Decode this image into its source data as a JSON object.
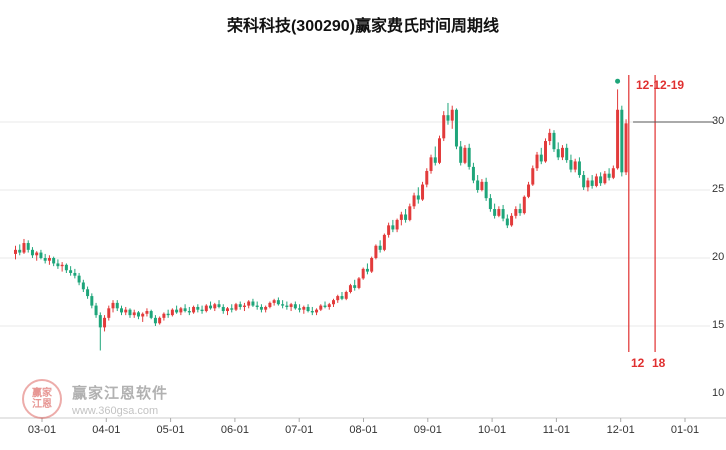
{
  "title": "荣科科技(300290)赢家费氏时间周期线",
  "watermark": {
    "logo_line1": "赢家",
    "logo_line2": "江恩",
    "name": "赢家江恩软件",
    "url": "www.360gsa.com"
  },
  "annotations": {
    "date_label": "12-12-19",
    "bottom_labels": [
      "12",
      "18"
    ]
  },
  "chart_data": {
    "type": "candlestick",
    "title": "荣科科技(300290)赢家费氏时间周期线",
    "x_tick_labels": [
      "03-01",
      "04-01",
      "05-01",
      "06-01",
      "07-01",
      "08-01",
      "09-01",
      "10-01",
      "11-01",
      "12-01",
      "01-01"
    ],
    "y_ticks": [
      {
        "value": 30,
        "label": "30",
        "grid": true
      },
      {
        "value": 25,
        "label": "25",
        "grid": true
      },
      {
        "value": 20,
        "label": "20",
        "grid": true
      },
      {
        "value": 15,
        "label": "15",
        "grid": true
      },
      {
        "value": 10,
        "label": "10",
        "grid": false
      }
    ],
    "ylim": [
      10,
      33.5
    ],
    "up_color": "#e23b3b",
    "down_color": "#1ea57a",
    "grid_color": "#eaeaea",
    "axis_color": "#cccccc",
    "cycle_color": "#e03030",
    "hline_value": 30,
    "marker": {
      "index": 142,
      "value": 33.0,
      "color": "#1ea57a"
    },
    "cycle_lines": [
      {
        "index": 145.0
      },
      {
        "index": 151.2
      }
    ],
    "candles_ohlc": [
      [
        20.3,
        20.9,
        19.9,
        20.6
      ],
      [
        20.6,
        21.0,
        20.2,
        20.4
      ],
      [
        20.4,
        21.4,
        20.3,
        21.1
      ],
      [
        21.1,
        21.3,
        20.4,
        20.6
      ],
      [
        20.6,
        20.8,
        20.0,
        20.2
      ],
      [
        20.2,
        20.5,
        19.8,
        20.4
      ],
      [
        20.4,
        20.6,
        19.9,
        20.0
      ],
      [
        20.0,
        20.3,
        19.6,
        19.8
      ],
      [
        19.8,
        20.2,
        19.5,
        20.0
      ],
      [
        20.0,
        20.1,
        19.4,
        19.6
      ],
      [
        19.6,
        19.9,
        19.2,
        19.4
      ],
      [
        19.4,
        19.7,
        19.0,
        19.5
      ],
      [
        19.5,
        19.6,
        18.9,
        19.1
      ],
      [
        19.1,
        19.4,
        18.7,
        18.9
      ],
      [
        18.9,
        19.2,
        18.5,
        18.7
      ],
      [
        18.7,
        18.9,
        18.0,
        18.2
      ],
      [
        18.2,
        18.4,
        17.5,
        17.7
      ],
      [
        17.7,
        17.9,
        17.0,
        17.2
      ],
      [
        17.2,
        17.4,
        16.3,
        16.5
      ],
      [
        16.5,
        16.7,
        15.6,
        15.8
      ],
      [
        15.8,
        16.0,
        13.2,
        14.9
      ],
      [
        14.9,
        15.8,
        14.6,
        15.6
      ],
      [
        15.6,
        16.5,
        15.4,
        16.3
      ],
      [
        16.3,
        16.9,
        16.0,
        16.7
      ],
      [
        16.7,
        16.9,
        16.1,
        16.3
      ],
      [
        16.3,
        16.5,
        15.8,
        16.0
      ],
      [
        16.0,
        16.4,
        15.8,
        16.2
      ],
      [
        16.2,
        16.3,
        15.6,
        15.8
      ],
      [
        15.8,
        16.2,
        15.6,
        16.0
      ],
      [
        16.0,
        16.1,
        15.5,
        15.7
      ],
      [
        15.7,
        16.0,
        15.3,
        15.9
      ],
      [
        15.9,
        16.3,
        15.7,
        16.1
      ],
      [
        16.1,
        16.2,
        15.5,
        15.6
      ],
      [
        15.6,
        15.8,
        15.0,
        15.2
      ],
      [
        15.2,
        15.7,
        15.1,
        15.6
      ],
      [
        15.6,
        16.0,
        15.4,
        15.9
      ],
      [
        15.9,
        16.2,
        15.6,
        15.8
      ],
      [
        15.8,
        16.3,
        15.7,
        16.2
      ],
      [
        16.2,
        16.5,
        15.9,
        16.0
      ],
      [
        16.0,
        16.4,
        15.8,
        16.3
      ],
      [
        16.3,
        16.6,
        16.0,
        16.1
      ],
      [
        16.1,
        16.4,
        15.8,
        16.0
      ],
      [
        16.0,
        16.5,
        15.9,
        16.4
      ],
      [
        16.4,
        16.6,
        16.0,
        16.2
      ],
      [
        16.2,
        16.5,
        15.9,
        16.1
      ],
      [
        16.1,
        16.6,
        16.0,
        16.5
      ],
      [
        16.5,
        16.8,
        16.2,
        16.3
      ],
      [
        16.3,
        16.7,
        16.1,
        16.6
      ],
      [
        16.6,
        16.9,
        16.3,
        16.4
      ],
      [
        16.4,
        16.6,
        15.9,
        16.1
      ],
      [
        16.1,
        16.4,
        15.8,
        16.3
      ],
      [
        16.3,
        16.6,
        16.0,
        16.2
      ],
      [
        16.2,
        16.7,
        16.1,
        16.6
      ],
      [
        16.6,
        16.8,
        16.2,
        16.4
      ],
      [
        16.4,
        16.7,
        16.1,
        16.5
      ],
      [
        16.5,
        16.9,
        16.3,
        16.8
      ],
      [
        16.8,
        17.0,
        16.4,
        16.5
      ],
      [
        16.5,
        16.8,
        16.2,
        16.4
      ],
      [
        16.4,
        16.6,
        16.0,
        16.2
      ],
      [
        16.2,
        16.5,
        16.0,
        16.4
      ],
      [
        16.4,
        16.8,
        16.3,
        16.7
      ],
      [
        16.7,
        17.0,
        16.5,
        16.9
      ],
      [
        16.9,
        17.1,
        16.5,
        16.6
      ],
      [
        16.6,
        16.9,
        16.3,
        16.5
      ],
      [
        16.5,
        16.8,
        16.2,
        16.4
      ],
      [
        16.4,
        16.7,
        16.1,
        16.6
      ],
      [
        16.6,
        16.8,
        16.2,
        16.3
      ],
      [
        16.3,
        16.6,
        16.0,
        16.2
      ],
      [
        16.2,
        16.5,
        15.9,
        16.4
      ],
      [
        16.4,
        16.6,
        16.0,
        16.1
      ],
      [
        16.1,
        16.4,
        15.8,
        16.0
      ],
      [
        16.0,
        16.3,
        15.8,
        16.2
      ],
      [
        16.2,
        16.6,
        16.1,
        16.5
      ],
      [
        16.5,
        16.8,
        16.3,
        16.4
      ],
      [
        16.4,
        16.7,
        16.2,
        16.6
      ],
      [
        16.6,
        17.0,
        16.4,
        16.9
      ],
      [
        16.9,
        17.3,
        16.7,
        17.2
      ],
      [
        17.2,
        17.5,
        16.9,
        17.0
      ],
      [
        17.0,
        17.6,
        16.9,
        17.5
      ],
      [
        17.5,
        18.1,
        17.4,
        18.0
      ],
      [
        18.0,
        18.4,
        17.6,
        17.8
      ],
      [
        17.8,
        18.6,
        17.7,
        18.5
      ],
      [
        18.5,
        19.3,
        18.4,
        19.2
      ],
      [
        19.2,
        19.6,
        18.8,
        19.0
      ],
      [
        19.0,
        20.1,
        18.9,
        20.0
      ],
      [
        20.0,
        21.0,
        19.9,
        20.9
      ],
      [
        20.9,
        21.3,
        20.4,
        20.6
      ],
      [
        20.6,
        21.8,
        20.5,
        21.7
      ],
      [
        21.7,
        22.6,
        21.5,
        22.4
      ],
      [
        22.4,
        22.8,
        21.9,
        22.1
      ],
      [
        22.1,
        22.9,
        21.9,
        22.8
      ],
      [
        22.8,
        23.4,
        22.4,
        23.2
      ],
      [
        23.2,
        23.6,
        22.6,
        22.8
      ],
      [
        22.8,
        24.0,
        22.7,
        23.8
      ],
      [
        23.8,
        24.8,
        23.6,
        24.6
      ],
      [
        24.6,
        25.2,
        24.0,
        24.3
      ],
      [
        24.3,
        25.6,
        24.2,
        25.4
      ],
      [
        25.4,
        26.6,
        25.2,
        26.4
      ],
      [
        26.4,
        27.6,
        26.2,
        27.4
      ],
      [
        27.4,
        28.2,
        26.8,
        27.0
      ],
      [
        27.0,
        29.0,
        26.9,
        28.8
      ],
      [
        28.8,
        30.8,
        28.6,
        30.5
      ],
      [
        30.5,
        31.4,
        29.8,
        30.1
      ],
      [
        30.1,
        31.2,
        29.5,
        30.9
      ],
      [
        30.9,
        31.0,
        28.0,
        28.2
      ],
      [
        28.2,
        28.6,
        26.8,
        27.0
      ],
      [
        27.0,
        28.3,
        26.9,
        28.1
      ],
      [
        28.1,
        28.4,
        26.5,
        26.7
      ],
      [
        26.7,
        27.0,
        25.5,
        25.7
      ],
      [
        25.7,
        26.1,
        24.8,
        25.0
      ],
      [
        25.0,
        25.8,
        24.9,
        25.6
      ],
      [
        25.6,
        25.9,
        24.2,
        24.4
      ],
      [
        24.4,
        24.7,
        23.4,
        23.6
      ],
      [
        23.6,
        24.0,
        22.9,
        23.1
      ],
      [
        23.1,
        23.8,
        23.0,
        23.6
      ],
      [
        23.6,
        23.9,
        22.7,
        22.9
      ],
      [
        22.9,
        23.2,
        22.2,
        22.4
      ],
      [
        22.4,
        23.3,
        22.3,
        23.1
      ],
      [
        23.1,
        23.8,
        22.9,
        23.6
      ],
      [
        23.6,
        24.0,
        23.1,
        23.3
      ],
      [
        23.3,
        24.6,
        23.2,
        24.5
      ],
      [
        24.5,
        25.6,
        24.4,
        25.4
      ],
      [
        25.4,
        26.8,
        25.3,
        26.6
      ],
      [
        26.6,
        27.8,
        26.4,
        27.6
      ],
      [
        27.6,
        28.1,
        26.9,
        27.1
      ],
      [
        27.1,
        28.8,
        27.0,
        28.6
      ],
      [
        28.6,
        29.5,
        28.3,
        29.2
      ],
      [
        29.2,
        29.4,
        27.8,
        28.0
      ],
      [
        28.0,
        28.5,
        27.2,
        27.4
      ],
      [
        27.4,
        28.3,
        27.2,
        28.1
      ],
      [
        28.1,
        28.4,
        27.0,
        27.2
      ],
      [
        27.2,
        27.6,
        26.3,
        26.5
      ],
      [
        26.5,
        27.3,
        26.3,
        27.1
      ],
      [
        27.1,
        27.4,
        25.9,
        26.1
      ],
      [
        26.1,
        26.4,
        25.0,
        25.2
      ],
      [
        25.2,
        25.9,
        24.9,
        25.7
      ],
      [
        25.7,
        26.1,
        25.1,
        25.3
      ],
      [
        25.3,
        26.2,
        25.2,
        26.0
      ],
      [
        26.0,
        26.3,
        25.3,
        25.5
      ],
      [
        25.5,
        26.4,
        25.4,
        26.2
      ],
      [
        26.2,
        26.6,
        25.7,
        25.9
      ],
      [
        25.9,
        26.8,
        25.8,
        26.6
      ],
      [
        26.6,
        32.4,
        26.5,
        30.9
      ],
      [
        30.9,
        31.2,
        26.0,
        26.3
      ],
      [
        26.3,
        30.2,
        26.1,
        29.9
      ]
    ]
  }
}
